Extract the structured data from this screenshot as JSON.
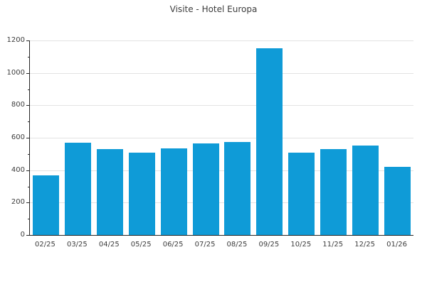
{
  "title": "Visite - Hotel Europa",
  "colors": {
    "bar": "#0f9bd7",
    "grid": "#e3e3e3",
    "axis": "#262626",
    "text": "#3c3c3c",
    "background": "#ffffff"
  },
  "chart_data": {
    "type": "bar",
    "title": "Visite - Hotel Europa",
    "categories": [
      "02/25",
      "03/25",
      "04/25",
      "05/25",
      "06/25",
      "07/25",
      "08/25",
      "09/25",
      "10/25",
      "11/25",
      "12/25",
      "01/26"
    ],
    "values": [
      370,
      570,
      530,
      510,
      535,
      565,
      575,
      1150,
      510,
      530,
      550,
      420
    ],
    "xlabel": "",
    "ylabel": "",
    "ylim": [
      0,
      1200
    ],
    "yticks": [
      0,
      200,
      400,
      600,
      800,
      1000,
      1200
    ],
    "minor_tick_step": 100,
    "grid": "horizontal-major-only",
    "legend": "none",
    "bar_color": "#0f9bd7"
  }
}
